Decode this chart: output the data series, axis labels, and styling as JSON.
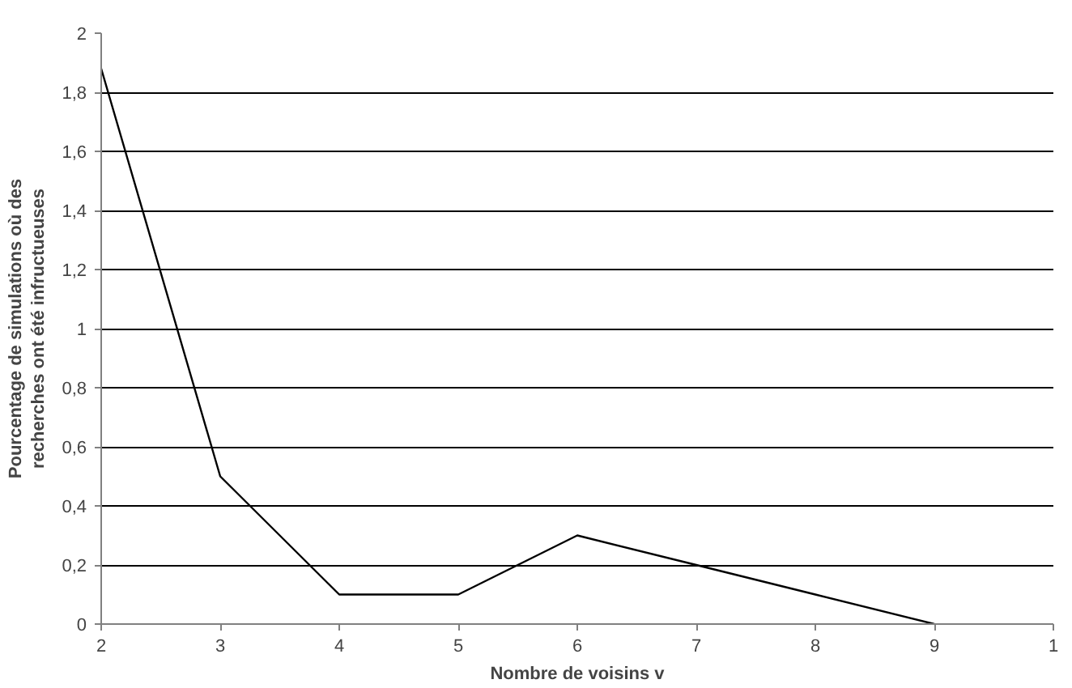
{
  "chart_data": {
    "type": "line",
    "xlabel": "Nombre de voisins v",
    "ylabel": "Pourcentage de simulations où des recherches ont été infructueuses",
    "categories": [
      "2",
      "3",
      "4",
      "5",
      "6",
      "7",
      "8",
      "9",
      "1"
    ],
    "series": [
      {
        "color": "#000000",
        "values": [
          1.88,
          0.5,
          0.1,
          0.1,
          0.3,
          0.2,
          0.1,
          0,
          null
        ]
      }
    ],
    "ylim": [
      0,
      2
    ],
    "yticks": [
      0,
      {
        "value": 0.2,
        "label": "0,2"
      },
      {
        "value": 0.4,
        "label": "0,4"
      },
      {
        "value": 0.6,
        "label": "0,6"
      },
      {
        "value": 0.8,
        "label": "0,8"
      },
      1,
      {
        "value": 1.2,
        "label": "1,2"
      },
      {
        "value": 1.4,
        "label": "1,4"
      },
      {
        "value": 1.6,
        "label": "1,6"
      },
      {
        "value": 1.8,
        "label": "1,8"
      },
      2
    ],
    "grid": "y",
    "marker": "none",
    "line_style": "solid"
  }
}
